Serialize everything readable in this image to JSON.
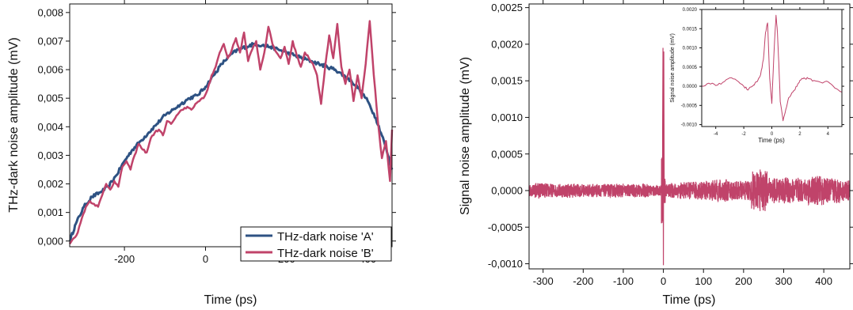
{
  "colors": {
    "series_a": "#2e5283",
    "series_b": "#c0436a",
    "axis": "#111111",
    "background": "#ffffff"
  },
  "chart_data": [
    {
      "type": "line",
      "xlabel": "Time (ps)",
      "ylabel": "THz-dark noise amplitude (mV)",
      "xlim": [
        -335,
        460
      ],
      "ylim": [
        -0.0002,
        0.0083
      ],
      "x_ticks": [
        "-200",
        "0",
        "200",
        "400"
      ],
      "x_tick_values": [
        -200,
        0,
        200,
        400
      ],
      "y_ticks": [
        "0,000",
        "0,001",
        "0,002",
        "0,003",
        "0,004",
        "0,005",
        "0,006",
        "0,007",
        "0,008"
      ],
      "y_tick_values": [
        0,
        0.001,
        0.002,
        0.003,
        0.004,
        0.005,
        0.006,
        0.007,
        0.008
      ],
      "legend_position": "bottom-right",
      "grid": false,
      "series": [
        {
          "name": "THz-dark noise 'A'",
          "color": "#2e5283",
          "x": [
            -335,
            -320,
            -300,
            -280,
            -260,
            -240,
            -220,
            -200,
            -180,
            -160,
            -140,
            -120,
            -100,
            -80,
            -60,
            -40,
            -20,
            0,
            20,
            40,
            60,
            80,
            100,
            120,
            140,
            160,
            180,
            200,
            220,
            240,
            260,
            280,
            300,
            320,
            340,
            360,
            380,
            400,
            420,
            440,
            460
          ],
          "y": [
            0.0,
            0.0006,
            0.0012,
            0.00155,
            0.0017,
            0.0019,
            0.0023,
            0.0028,
            0.0032,
            0.0035,
            0.0038,
            0.0041,
            0.0044,
            0.0046,
            0.0048,
            0.005,
            0.0051,
            0.0054,
            0.0058,
            0.0062,
            0.0065,
            0.0067,
            0.0068,
            0.0069,
            0.00685,
            0.0068,
            0.0067,
            0.0066,
            0.0065,
            0.0064,
            0.0063,
            0.0062,
            0.0061,
            0.006,
            0.0058,
            0.0056,
            0.0053,
            0.0049,
            0.0043,
            0.0035,
            0.0025
          ]
        },
        {
          "name": "THz-dark noise 'B'",
          "color": "#c0436a",
          "x": [
            -335,
            -325,
            -315,
            -305,
            -295,
            -285,
            -275,
            -265,
            -255,
            -245,
            -235,
            -225,
            -215,
            -205,
            -195,
            -185,
            -175,
            -165,
            -155,
            -145,
            -135,
            -125,
            -115,
            -105,
            -95,
            -85,
            -75,
            -65,
            -55,
            -45,
            -35,
            -25,
            -15,
            -5,
            5,
            15,
            25,
            35,
            45,
            55,
            65,
            75,
            85,
            95,
            105,
            115,
            125,
            135,
            145,
            155,
            165,
            175,
            185,
            195,
            205,
            215,
            225,
            235,
            245,
            255,
            265,
            275,
            285,
            295,
            305,
            315,
            325,
            335,
            345,
            355,
            365,
            375,
            385,
            395,
            405,
            415,
            425,
            435,
            445,
            455,
            460
          ],
          "y": [
            -0.0001,
            0.0001,
            0.0003,
            0.0008,
            0.0012,
            0.0014,
            0.0013,
            0.0012,
            0.0016,
            0.002,
            0.0018,
            0.0021,
            0.0019,
            0.0026,
            0.0028,
            0.0025,
            0.003,
            0.0034,
            0.0032,
            0.0031,
            0.0036,
            0.0038,
            0.0039,
            0.0037,
            0.0042,
            0.0041,
            0.0043,
            0.0045,
            0.0046,
            0.0047,
            0.0046,
            0.0048,
            0.0049,
            0.005,
            0.0053,
            0.0058,
            0.0061,
            0.0066,
            0.0069,
            0.0064,
            0.0067,
            0.0071,
            0.0066,
            0.0073,
            0.0063,
            0.0067,
            0.007,
            0.006,
            0.0066,
            0.0075,
            0.0069,
            0.0066,
            0.0064,
            0.0068,
            0.0062,
            0.007,
            0.0065,
            0.0061,
            0.0066,
            0.0064,
            0.0062,
            0.0058,
            0.0048,
            0.0061,
            0.0072,
            0.0064,
            0.0076,
            0.0061,
            0.0055,
            0.006,
            0.0049,
            0.0058,
            0.005,
            0.0062,
            0.0077,
            0.0058,
            0.0042,
            0.0029,
            0.0035,
            0.0021,
            0.0039
          ]
        }
      ]
    },
    {
      "type": "line",
      "xlabel": "Time (ps)",
      "ylabel": "Signal noise amplitude (mV)",
      "xlim": [
        -335,
        465
      ],
      "ylim": [
        -0.00107,
        0.00255
      ],
      "x_ticks": [
        "-300",
        "-200",
        "-100",
        "0",
        "100",
        "200",
        "300",
        "400"
      ],
      "x_tick_values": [
        -300,
        -200,
        -100,
        0,
        100,
        200,
        300,
        400
      ],
      "y_ticks": [
        "-0,0010",
        "-0,0005",
        "0,0000",
        "0,0005",
        "0,0010",
        "0,0015",
        "0,0020",
        "0,0025"
      ],
      "y_tick_values": [
        -0.001,
        -0.0005,
        0,
        0.0005,
        0.001,
        0.0015,
        0.002,
        0.0025
      ],
      "grid": false,
      "series": [
        {
          "color": "#c0436a",
          "x": [
            -335,
            -320,
            -300,
            -280,
            -260,
            -240,
            -220,
            -200,
            -180,
            -160,
            -140,
            -120,
            -100,
            -80,
            -60,
            -40,
            -20,
            -5,
            -2,
            -1,
            0,
            1,
            2,
            5,
            20,
            40,
            60,
            80,
            100,
            120,
            140,
            160,
            180,
            200,
            220,
            240,
            260,
            280,
            300,
            320,
            340,
            360,
            380,
            400,
            420,
            440,
            465
          ],
          "y": [
            2e-05,
            -6e-05,
            8e-05,
            -4e-05,
            6e-05,
            -5e-05,
            7e-05,
            -3e-05,
            6e-05,
            -5e-05,
            4e-05,
            -6e-05,
            5e-05,
            -4e-05,
            6e-05,
            -5e-05,
            4e-05,
            2e-05,
            0.0008,
            0.00195,
            -0.00102,
            0.0019,
            0.0002,
            6e-05,
            -5e-05,
            8e-05,
            -7e-05,
            9e-05,
            -8e-05,
            0.0001,
            -0.00012,
            0.00011,
            -9e-05,
            0.0001,
            -0.0001,
            0.00035,
            -0.00015,
            0.00012,
            -0.00013,
            0.00016,
            -0.00011,
            0.00013,
            -0.00018,
            0.00014,
            -0.00012,
            0.00015,
            5e-05
          ]
        }
      ],
      "inset": {
        "xlabel": "Time (ps)",
        "ylabel": "Signal noise amplitude (mV)",
        "xlim": [
          -5,
          5
        ],
        "ylim": [
          -0.00105,
          0.002
        ],
        "x_ticks": [
          "-4",
          "-2",
          "0",
          "2",
          "4"
        ],
        "x_tick_values": [
          -4,
          -2,
          0,
          2,
          4
        ],
        "y_ticks": [
          "-0.0010",
          "-0.0005",
          "0.0000",
          "0.0005",
          "0.0010",
          "0.0015",
          "0.0020"
        ],
        "y_tick_values": [
          -0.001,
          -0.0005,
          0,
          0.0005,
          0.001,
          0.0015,
          0.002
        ],
        "series": [
          {
            "color": "#c0436a",
            "x": [
              -5,
              -4.5,
              -4,
              -3.5,
              -3,
              -2.5,
              -2,
              -1.7,
              -1.4,
              -1.2,
              -1,
              -0.8,
              -0.6,
              -0.45,
              -0.3,
              -0.15,
              0,
              0.1,
              0.2,
              0.3,
              0.4,
              0.5,
              0.6,
              0.8,
              1,
              1.2,
              1.5,
              1.8,
              2,
              2.3,
              2.6,
              3,
              3.5,
              4,
              4.5,
              5
            ],
            "y": [
              0.0,
              8e-05,
              2e-05,
              0.0001,
              0.00022,
              0.00015,
              0.0,
              -0.0001,
              0.0,
              8e-05,
              0.00015,
              0.0003,
              0.0007,
              0.0014,
              0.00165,
              0.0002,
              -0.00045,
              0.0004,
              0.0012,
              0.00185,
              0.0014,
              0.0006,
              -0.0004,
              -0.0009,
              -0.0006,
              -0.0003,
              -0.00015,
              0.0,
              0.00015,
              0.00022,
              0.0002,
              0.00015,
              0.0001,
              0.00012,
              -5e-05,
              -0.00015
            ]
          }
        ]
      }
    }
  ]
}
